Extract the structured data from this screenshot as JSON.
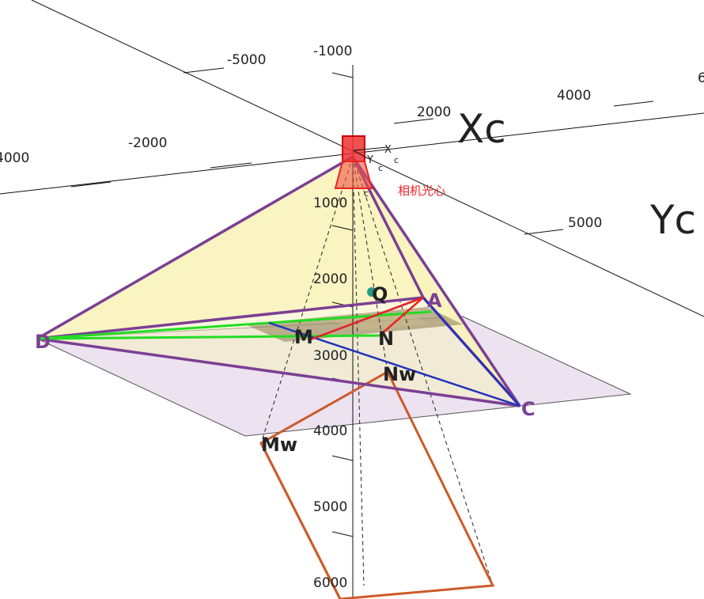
{
  "axes": {
    "xc_label": "Xc",
    "yc_label": "Yc",
    "xc_ticks": [
      "2000",
      "4000",
      "6"
    ],
    "yc_ticks": [
      "5000"
    ],
    "left_ticks": [
      "-5000",
      "-2000",
      "4000"
    ],
    "z_ticks": [
      "-1000",
      "1000",
      "2000",
      "3000",
      "4000",
      "5000",
      "6000"
    ]
  },
  "camera": {
    "x_sub_label": "X",
    "x_sub_index": "c",
    "y_sub_label": "Y",
    "y_sub_index": "c",
    "extra_index": "c",
    "optical_center_note": "相机光心"
  },
  "points": {
    "A": "A",
    "C": "C",
    "D": "D",
    "M": "M",
    "N": "N",
    "Q": "Q",
    "Nw": "Nw",
    "Mw": "Mw"
  },
  "colors": {
    "purple": "#7b3f94",
    "green": "#22dd22",
    "blue": "#2233bb",
    "orange": "#cc5a2a",
    "red": "#ee2222",
    "teal": "#2a9a88",
    "yellow_fill": "#fbf7b8",
    "lavender_fill": "#ece2f0"
  }
}
